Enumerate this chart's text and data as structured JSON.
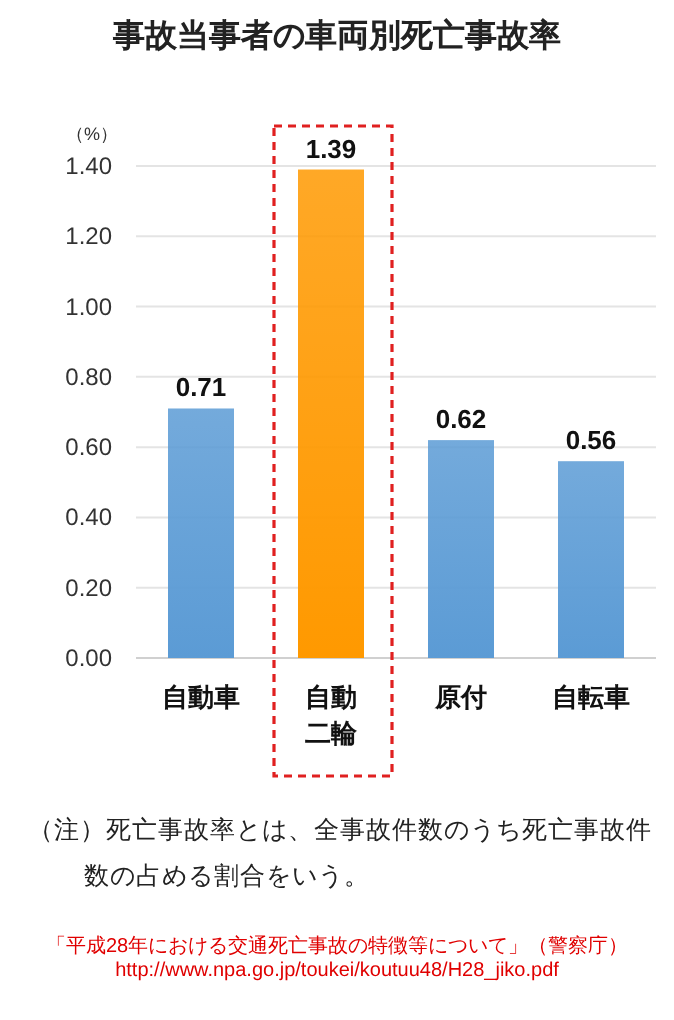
{
  "chart_data": {
    "type": "bar",
    "title": "事故当事者の車両別死亡事故率",
    "ylabel": "（%）",
    "categories": [
      "自動車",
      "自動二輪",
      "原付",
      "自転車"
    ],
    "values": [
      0.71,
      1.39,
      0.62,
      0.56
    ],
    "colors": [
      "#5b9bd5",
      "#ff9900",
      "#5b9bd5",
      "#5b9bd5"
    ],
    "ylim": [
      0,
      1.4
    ],
    "yticks": [
      {
        "value": 0,
        "label": "0.00"
      },
      {
        "value": 0.2,
        "label": "0.20"
      },
      {
        "value": 0.4,
        "label": "0.40"
      },
      {
        "value": 0.6,
        "label": "0.60"
      },
      {
        "value": 0.8,
        "label": "0.80"
      },
      {
        "value": 1.0,
        "label": "1.00"
      },
      {
        "value": 1.2,
        "label": "1.20"
      },
      {
        "value": 1.4,
        "label": "1.40"
      }
    ],
    "grid": "y",
    "data_labels": true,
    "annotations": [
      "（注）死亡事故率とは、全事故件数のうち死亡事故件数の占める割合をいう。",
      "「平成28年における交通死亡事故の特徴等について」（警察庁）",
      "http://www.npa.go.jp/toukei/koutuu48/H28_jiko.pdf"
    ]
  }
}
